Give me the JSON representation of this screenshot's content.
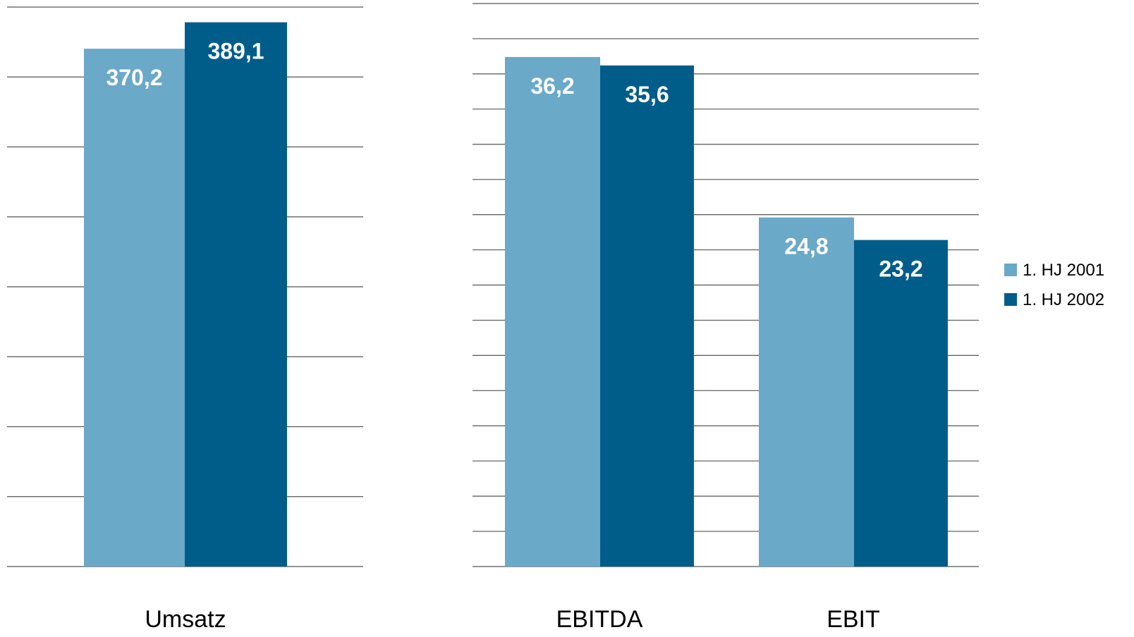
{
  "chart_data": [
    {
      "type": "bar",
      "categories": [
        "Umsatz"
      ],
      "series": [
        {
          "name": "1. HJ 2001",
          "values": [
            370.2
          ],
          "labels": [
            "370,2"
          ],
          "color": "#6aa9c8"
        },
        {
          "name": "1. HJ 2002",
          "values": [
            389.1
          ],
          "labels": [
            "389,1"
          ],
          "color": "#005d8a"
        }
      ],
      "ylim": [
        0,
        400
      ],
      "gridlines": 9,
      "grid": true
    },
    {
      "type": "bar",
      "categories": [
        "EBITDA",
        "EBIT"
      ],
      "series": [
        {
          "name": "1. HJ 2001",
          "values": [
            36.2,
            24.8
          ],
          "labels": [
            "36,2",
            "24,8"
          ],
          "color": "#6aa9c8"
        },
        {
          "name": "1. HJ 2002",
          "values": [
            35.6,
            23.2
          ],
          "labels": [
            "35,6",
            "23,2"
          ],
          "color": "#005d8a"
        }
      ],
      "ylim": [
        0,
        40
      ],
      "gridlines": 17,
      "grid": true,
      "legend": "right"
    }
  ],
  "legend": {
    "items": [
      {
        "label": "1. HJ 2001",
        "color": "#6aa9c8"
      },
      {
        "label": "1. HJ 2002",
        "color": "#005d8a"
      }
    ]
  }
}
